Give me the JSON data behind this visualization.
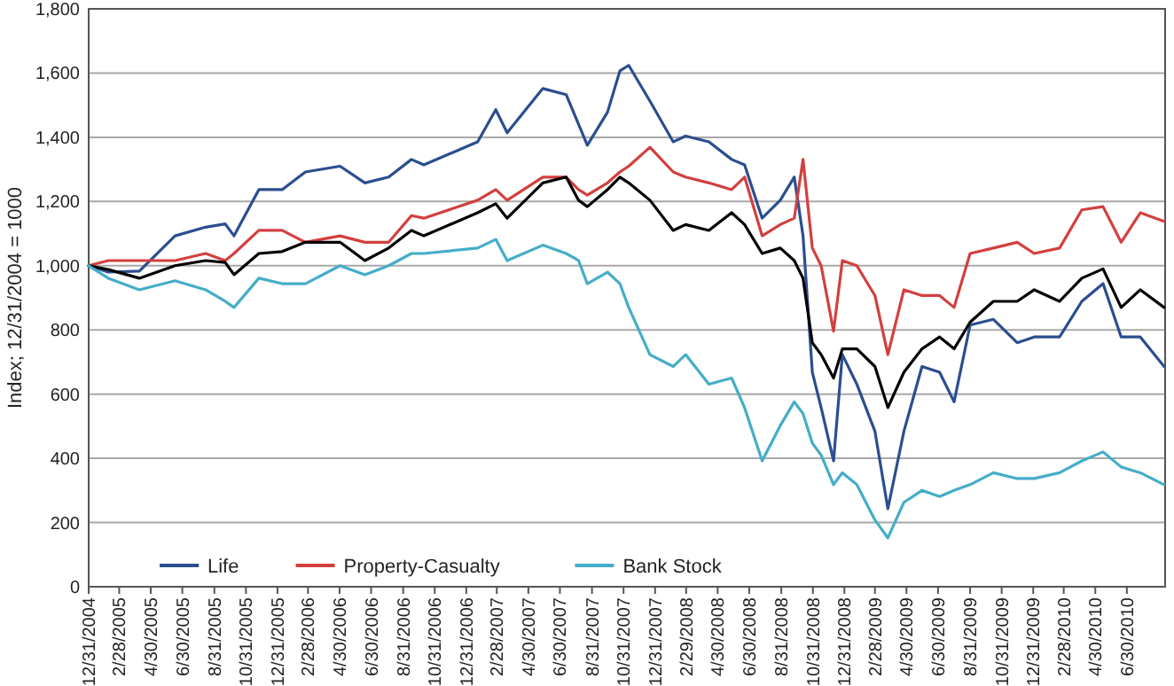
{
  "chart_data": {
    "type": "line",
    "ylabel": "Index; 12/31/2004 = 1000",
    "x": [
      "2004-12-31",
      "2005-02-07",
      "2005-04-08",
      "2005-06-16",
      "2005-08-14",
      "2005-09-21",
      "2005-10-08",
      "2005-11-25",
      "2006-01-09",
      "2006-02-23",
      "2006-05-01",
      "2006-06-18",
      "2006-08-03",
      "2006-09-16",
      "2006-10-10",
      "2007-01-22",
      "2007-02-26",
      "2007-03-20",
      "2007-05-28",
      "2007-07-12",
      "2007-08-05",
      "2007-08-22",
      "2007-09-30",
      "2007-10-24",
      "2007-11-10",
      "2007-12-21",
      "2008-02-04",
      "2008-02-28",
      "2008-04-13",
      "2008-05-27",
      "2008-06-21",
      "2008-07-25",
      "2008-08-29",
      "2008-09-25",
      "2008-10-12",
      "2008-10-30",
      "2008-11-16",
      "2008-12-10",
      "2008-12-27",
      "2009-01-24",
      "2009-02-28",
      "2009-03-25",
      "2009-04-25",
      "2009-05-30",
      "2009-07-03",
      "2009-07-31",
      "2009-08-31",
      "2009-10-15",
      "2009-11-30",
      "2010-01-02",
      "2010-02-20",
      "2010-04-04",
      "2010-05-15",
      "2010-06-19",
      "2010-07-26",
      "2010-09-10"
    ],
    "series": [
      {
        "name": "Life",
        "color": "#2b4e8f",
        "values": [
          1000,
          980,
          983,
          1093,
          1120,
          1130,
          1093,
          1237,
          1237,
          1292,
          1310,
          1258,
          1276,
          1331,
          1314,
          1386,
          1486,
          1414,
          1552,
          1533,
          1441,
          1375,
          1478,
          1607,
          1624,
          1513,
          1386,
          1404,
          1386,
          1331,
          1314,
          1148,
          1204,
          1276,
          1093,
          668,
          558,
          392,
          723,
          631,
          484,
          243,
          484,
          686,
          668,
          576,
          815,
          833,
          760,
          778,
          778,
          889,
          944,
          778,
          778,
          686
        ]
      },
      {
        "name": "Property-Casualty",
        "color": "#d2403f",
        "values": [
          1000,
          1016,
          1016,
          1016,
          1038,
          1016,
          1038,
          1110,
          1110,
          1073,
          1093,
          1073,
          1073,
          1156,
          1148,
          1204,
          1237,
          1204,
          1276,
          1276,
          1237,
          1220,
          1258,
          1292,
          1310,
          1369,
          1292,
          1276,
          1258,
          1237,
          1276,
          1093,
          1128,
          1148,
          1331,
          1055,
          1000,
          796,
          1016,
          1000,
          907,
          723,
          925,
          907,
          907,
          870,
          1038,
          1055,
          1073,
          1038,
          1055,
          1174,
          1184,
          1073,
          1165,
          1138
        ]
      },
      {
        "color": "#000000",
        "values": [
          1000,
          988,
          961,
          1000,
          1016,
          1010,
          972,
          1038,
          1044,
          1073,
          1073,
          1016,
          1055,
          1110,
          1093,
          1165,
          1193,
          1148,
          1258,
          1276,
          1204,
          1184,
          1237,
          1276,
          1258,
          1204,
          1110,
          1128,
          1110,
          1165,
          1128,
          1038,
          1055,
          1016,
          961,
          760,
          723,
          650,
          741,
          741,
          686,
          558,
          668,
          741,
          778,
          741,
          824,
          889,
          889,
          925,
          889,
          961,
          990,
          870,
          925,
          870
        ]
      },
      {
        "name": "Bank Stock",
        "color": "#45adc8",
        "values": [
          1000,
          961,
          925,
          953,
          925,
          889,
          870,
          961,
          944,
          944,
          1000,
          972,
          1000,
          1038,
          1038,
          1055,
          1082,
          1016,
          1064,
          1038,
          1016,
          944,
          980,
          944,
          870,
          723,
          686,
          723,
          631,
          650,
          558,
          392,
          502,
          576,
          539,
          447,
          410,
          318,
          355,
          318,
          208,
          152,
          263,
          300,
          281,
          300,
          318,
          355,
          337,
          337,
          355,
          392,
          420,
          373,
          355,
          318
        ]
      }
    ],
    "xlim": [
      "2004-12-31",
      "2010-09-12"
    ],
    "xticks": [
      {
        "value": "2004-12-31",
        "label": "12/31/2004"
      },
      {
        "value": "2005-02-28",
        "label": "2/28/2005"
      },
      {
        "value": "2005-04-30",
        "label": "4/30/2005"
      },
      {
        "value": "2005-06-30",
        "label": "6/30/2005"
      },
      {
        "value": "2005-08-31",
        "label": "8/31/2005"
      },
      {
        "value": "2005-10-31",
        "label": "10/31/2005"
      },
      {
        "value": "2005-12-31",
        "label": "12/31/2005"
      },
      {
        "value": "2006-02-28",
        "label": "2/28/2006"
      },
      {
        "value": "2006-04-30",
        "label": "4/30/2006"
      },
      {
        "value": "2006-06-30",
        "label": "6/30/2006"
      },
      {
        "value": "2006-08-31",
        "label": "8/31/2006"
      },
      {
        "value": "2006-10-31",
        "label": "10/31/2006"
      },
      {
        "value": "2006-12-31",
        "label": "12/31/2006"
      },
      {
        "value": "2007-02-28",
        "label": "2/28/2007"
      },
      {
        "value": "2007-04-30",
        "label": "4/30/2007"
      },
      {
        "value": "2007-06-30",
        "label": "6/30/2007"
      },
      {
        "value": "2007-08-31",
        "label": "8/31/2007"
      },
      {
        "value": "2007-10-31",
        "label": "10/31/2007"
      },
      {
        "value": "2007-12-31",
        "label": "12/31/2007"
      },
      {
        "value": "2008-02-29",
        "label": "2/29/2008"
      },
      {
        "value": "2008-04-30",
        "label": "4/30/2008"
      },
      {
        "value": "2008-06-30",
        "label": "6/30/2008"
      },
      {
        "value": "2008-08-31",
        "label": "8/31/2008"
      },
      {
        "value": "2008-10-31",
        "label": "10/31/2008"
      },
      {
        "value": "2008-12-31",
        "label": "12/31/2008"
      },
      {
        "value": "2009-02-28",
        "label": "2/28/2009"
      },
      {
        "value": "2009-04-30",
        "label": "4/30/2009"
      },
      {
        "value": "2009-06-30",
        "label": "6/30/2009"
      },
      {
        "value": "2009-08-31",
        "label": "8/31/2009"
      },
      {
        "value": "2009-10-31",
        "label": "10/31/2009"
      },
      {
        "value": "2009-12-31",
        "label": "12/31/2009"
      },
      {
        "value": "2010-02-28",
        "label": "2/28/2010"
      },
      {
        "value": "2010-04-30",
        "label": "4/30/2010"
      },
      {
        "value": "2010-06-30",
        "label": "6/30/2010"
      }
    ],
    "ylim": [
      0,
      1800
    ],
    "yticks": [
      0,
      200,
      400,
      600,
      800,
      {
        "value": 1000,
        "label": "1,000"
      },
      {
        "value": 1200,
        "label": "1,200"
      },
      {
        "value": 1400,
        "label": "1,400"
      },
      {
        "value": 1600,
        "label": "1,600"
      },
      {
        "value": 1800,
        "label": "1,800"
      }
    ],
    "grid": "y",
    "legend": "bottom",
    "marker": "none",
    "line_style": "solid"
  }
}
